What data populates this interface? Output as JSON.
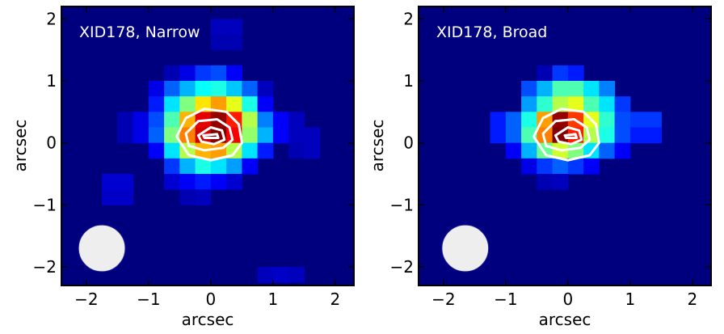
{
  "chart_data": [
    {
      "type": "heatmap",
      "title": "XID178, Narrow",
      "xlabel": "arcsec",
      "ylabel": "arcsec",
      "xlim": [
        -2.4,
        2.3
      ],
      "ylim": [
        -2.3,
        2.2
      ],
      "xticks": [
        -2,
        -1,
        0,
        1,
        2
      ],
      "yticks": [
        -2,
        -1,
        0,
        1,
        2
      ],
      "xtick_labels": [
        "−2",
        "−1",
        "0",
        "1",
        "2"
      ],
      "ytick_labels": [
        "−2",
        "−1",
        "0",
        "1",
        "2"
      ],
      "grid": false,
      "colormap": "jet",
      "background_color": "#00007f",
      "pixel_size": 0.25,
      "pixels": [
        {
          "x": 0.125,
          "y": 1.875,
          "v": 0.06
        },
        {
          "x": 0.375,
          "y": 1.875,
          "v": 0.06
        },
        {
          "x": 0.125,
          "y": 1.625,
          "v": 0.05
        },
        {
          "x": 0.375,
          "y": 1.625,
          "v": 0.05
        },
        {
          "x": -0.625,
          "y": 1.125,
          "v": 0.05
        },
        {
          "x": -0.375,
          "y": 1.125,
          "v": 0.1
        },
        {
          "x": -0.125,
          "y": 1.125,
          "v": 0.18
        },
        {
          "x": 0.125,
          "y": 1.125,
          "v": 0.2
        },
        {
          "x": 0.375,
          "y": 1.125,
          "v": 0.12
        },
        {
          "x": -0.875,
          "y": 0.875,
          "v": 0.1
        },
        {
          "x": -0.625,
          "y": 0.875,
          "v": 0.22
        },
        {
          "x": -0.375,
          "y": 0.875,
          "v": 0.3
        },
        {
          "x": -0.125,
          "y": 0.875,
          "v": 0.38
        },
        {
          "x": 0.125,
          "y": 0.875,
          "v": 0.4
        },
        {
          "x": 0.375,
          "y": 0.875,
          "v": 0.32
        },
        {
          "x": 0.625,
          "y": 0.875,
          "v": 0.22
        },
        {
          "x": 0.875,
          "y": 0.875,
          "v": 0.06
        },
        {
          "x": -0.875,
          "y": 0.625,
          "v": 0.15
        },
        {
          "x": -0.625,
          "y": 0.625,
          "v": 0.35
        },
        {
          "x": -0.375,
          "y": 0.625,
          "v": 0.5
        },
        {
          "x": -0.125,
          "y": 0.625,
          "v": 0.65
        },
        {
          "x": 0.125,
          "y": 0.625,
          "v": 0.72
        },
        {
          "x": 0.375,
          "y": 0.625,
          "v": 0.6
        },
        {
          "x": 0.625,
          "y": 0.625,
          "v": 0.4
        },
        {
          "x": 0.875,
          "y": 0.625,
          "v": 0.12
        },
        {
          "x": -1.375,
          "y": 0.375,
          "v": 0.05
        },
        {
          "x": -1.125,
          "y": 0.375,
          "v": 0.1
        },
        {
          "x": -0.875,
          "y": 0.375,
          "v": 0.2
        },
        {
          "x": -0.625,
          "y": 0.375,
          "v": 0.45
        },
        {
          "x": -0.375,
          "y": 0.375,
          "v": 0.7
        },
        {
          "x": -0.125,
          "y": 0.375,
          "v": 0.9
        },
        {
          "x": 0.125,
          "y": 0.375,
          "v": 0.98
        },
        {
          "x": 0.375,
          "y": 0.375,
          "v": 0.85
        },
        {
          "x": 0.625,
          "y": 0.375,
          "v": 0.55
        },
        {
          "x": 0.875,
          "y": 0.375,
          "v": 0.25
        },
        {
          "x": 1.125,
          "y": 0.375,
          "v": 0.12
        },
        {
          "x": 1.375,
          "y": 0.375,
          "v": 0.06
        },
        {
          "x": -1.375,
          "y": 0.125,
          "v": 0.05
        },
        {
          "x": -1.125,
          "y": 0.125,
          "v": 0.1
        },
        {
          "x": -0.875,
          "y": 0.125,
          "v": 0.22
        },
        {
          "x": -0.625,
          "y": 0.125,
          "v": 0.5
        },
        {
          "x": -0.375,
          "y": 0.125,
          "v": 0.75
        },
        {
          "x": -0.125,
          "y": 0.125,
          "v": 0.92
        },
        {
          "x": 0.125,
          "y": 0.125,
          "v": 1.0
        },
        {
          "x": 0.375,
          "y": 0.125,
          "v": 0.88
        },
        {
          "x": 0.625,
          "y": 0.125,
          "v": 0.52
        },
        {
          "x": 0.875,
          "y": 0.125,
          "v": 0.3
        },
        {
          "x": 1.125,
          "y": 0.125,
          "v": 0.12
        },
        {
          "x": 1.375,
          "y": 0.125,
          "v": 0.06
        },
        {
          "x": 1.625,
          "y": 0.125,
          "v": 0.06
        },
        {
          "x": -0.875,
          "y": -0.125,
          "v": 0.12
        },
        {
          "x": -0.625,
          "y": -0.125,
          "v": 0.35
        },
        {
          "x": -0.375,
          "y": -0.125,
          "v": 0.55
        },
        {
          "x": -0.125,
          "y": -0.125,
          "v": 0.7
        },
        {
          "x": 0.125,
          "y": -0.125,
          "v": 0.72
        },
        {
          "x": 0.375,
          "y": -0.125,
          "v": 0.55
        },
        {
          "x": 0.625,
          "y": -0.125,
          "v": 0.35
        },
        {
          "x": 0.875,
          "y": -0.125,
          "v": 0.15
        },
        {
          "x": 1.375,
          "y": -0.125,
          "v": 0.05
        },
        {
          "x": 1.625,
          "y": -0.125,
          "v": 0.06
        },
        {
          "x": -0.625,
          "y": -0.375,
          "v": 0.18
        },
        {
          "x": -0.375,
          "y": -0.375,
          "v": 0.3
        },
        {
          "x": -0.125,
          "y": -0.375,
          "v": 0.4
        },
        {
          "x": 0.125,
          "y": -0.375,
          "v": 0.35
        },
        {
          "x": 0.375,
          "y": -0.375,
          "v": 0.28
        },
        {
          "x": 0.625,
          "y": -0.375,
          "v": 0.12
        },
        {
          "x": -1.625,
          "y": -0.625,
          "v": 0.08
        },
        {
          "x": -1.375,
          "y": -0.625,
          "v": 0.08
        },
        {
          "x": -0.625,
          "y": -0.625,
          "v": 0.08
        },
        {
          "x": -0.375,
          "y": -0.625,
          "v": 0.12
        },
        {
          "x": -0.125,
          "y": -0.625,
          "v": 0.15
        },
        {
          "x": 0.125,
          "y": -0.625,
          "v": 0.12
        },
        {
          "x": 0.375,
          "y": -0.625,
          "v": 0.08
        },
        {
          "x": -1.625,
          "y": -0.875,
          "v": 0.07
        },
        {
          "x": -1.375,
          "y": -0.875,
          "v": 0.07
        },
        {
          "x": -0.375,
          "y": -0.875,
          "v": 0.05
        },
        {
          "x": -0.125,
          "y": -0.875,
          "v": 0.06
        },
        {
          "x": 0.875,
          "y": -2.125,
          "v": 0.06
        },
        {
          "x": 1.125,
          "y": -2.125,
          "v": 0.07
        },
        {
          "x": 1.375,
          "y": -2.125,
          "v": 0.06
        }
      ],
      "contours": [
        {
          "level": "outer",
          "points": [
            [
              -0.55,
              0.1
            ],
            [
              -0.4,
              0.4
            ],
            [
              -0.1,
              0.55
            ],
            [
              0.25,
              0.5
            ],
            [
              0.45,
              0.3
            ],
            [
              0.5,
              0.0
            ],
            [
              0.35,
              -0.2
            ],
            [
              0.0,
              -0.28
            ],
            [
              -0.35,
              -0.2
            ]
          ]
        },
        {
          "level": "middle",
          "points": [
            [
              -0.4,
              0.15
            ],
            [
              -0.2,
              0.35
            ],
            [
              0.1,
              0.38
            ],
            [
              0.3,
              0.25
            ],
            [
              0.35,
              0.05
            ],
            [
              0.2,
              -0.08
            ],
            [
              -0.1,
              -0.12
            ],
            [
              -0.35,
              -0.05
            ]
          ]
        },
        {
          "level": "inner",
          "points": [
            [
              -0.2,
              0.12
            ],
            [
              0.0,
              0.25
            ],
            [
              0.18,
              0.2
            ],
            [
              0.22,
              0.05
            ],
            [
              0.05,
              -0.02
            ],
            [
              -0.15,
              0.02
            ]
          ]
        },
        {
          "level": "core",
          "points": [
            [
              -0.12,
              0.12
            ],
            [
              0.1,
              0.14
            ],
            [
              0.12,
              0.08
            ],
            [
              -0.1,
              0.08
            ]
          ]
        }
      ],
      "beam": {
        "x": -1.75,
        "y": -1.7,
        "diameter_arcsec": 0.75,
        "color": "#eeeeee"
      }
    },
    {
      "type": "heatmap",
      "title": "XID178, Broad",
      "xlabel": "arcsec",
      "ylabel": "arcsec",
      "xlim": [
        -2.4,
        2.3
      ],
      "ylim": [
        -2.3,
        2.2
      ],
      "xticks": [
        -2,
        -1,
        0,
        1,
        2
      ],
      "yticks": [
        -2,
        -1,
        0,
        1,
        2
      ],
      "xtick_labels": [
        "−2",
        "−1",
        "0",
        "1",
        "2"
      ],
      "ytick_labels": [
        "−2",
        "−1",
        "0",
        "1",
        "2"
      ],
      "grid": false,
      "colormap": "jet",
      "background_color": "#00007f",
      "pixel_size": 0.25,
      "pixels": [
        {
          "x": -0.375,
          "y": 1.125,
          "v": 0.05
        },
        {
          "x": -0.125,
          "y": 1.125,
          "v": 0.18
        },
        {
          "x": 0.125,
          "y": 1.125,
          "v": 0.15
        },
        {
          "x": -0.625,
          "y": 0.875,
          "v": 0.2
        },
        {
          "x": -0.375,
          "y": 0.875,
          "v": 0.3
        },
        {
          "x": -0.125,
          "y": 0.875,
          "v": 0.45
        },
        {
          "x": 0.125,
          "y": 0.875,
          "v": 0.45
        },
        {
          "x": 0.375,
          "y": 0.875,
          "v": 0.35
        },
        {
          "x": 0.625,
          "y": 0.875,
          "v": 0.25
        },
        {
          "x": -0.625,
          "y": 0.625,
          "v": 0.28
        },
        {
          "x": -0.375,
          "y": 0.625,
          "v": 0.42
        },
        {
          "x": -0.125,
          "y": 0.625,
          "v": 0.55
        },
        {
          "x": 0.125,
          "y": 0.625,
          "v": 0.6
        },
        {
          "x": 0.375,
          "y": 0.625,
          "v": 0.45
        },
        {
          "x": 0.625,
          "y": 0.625,
          "v": 0.35
        },
        {
          "x": 0.875,
          "y": 0.625,
          "v": 0.18
        },
        {
          "x": -1.125,
          "y": 0.375,
          "v": 0.15
        },
        {
          "x": -0.875,
          "y": 0.375,
          "v": 0.22
        },
        {
          "x": -0.625,
          "y": 0.375,
          "v": 0.4
        },
        {
          "x": -0.375,
          "y": 0.375,
          "v": 0.72
        },
        {
          "x": -0.125,
          "y": 0.375,
          "v": 0.98
        },
        {
          "x": 0.125,
          "y": 0.375,
          "v": 0.82
        },
        {
          "x": 0.375,
          "y": 0.375,
          "v": 0.6
        },
        {
          "x": 0.625,
          "y": 0.375,
          "v": 0.42
        },
        {
          "x": 0.875,
          "y": 0.375,
          "v": 0.2
        },
        {
          "x": 1.125,
          "y": 0.375,
          "v": 0.18
        },
        {
          "x": 1.375,
          "y": 0.375,
          "v": 0.18
        },
        {
          "x": -1.125,
          "y": 0.125,
          "v": 0.15
        },
        {
          "x": -0.875,
          "y": 0.125,
          "v": 0.22
        },
        {
          "x": -0.625,
          "y": 0.125,
          "v": 0.45
        },
        {
          "x": -0.375,
          "y": 0.125,
          "v": 0.75
        },
        {
          "x": -0.125,
          "y": 0.125,
          "v": 1.0
        },
        {
          "x": 0.125,
          "y": 0.125,
          "v": 0.85
        },
        {
          "x": 0.375,
          "y": 0.125,
          "v": 0.55
        },
        {
          "x": 0.625,
          "y": 0.125,
          "v": 0.4
        },
        {
          "x": 0.875,
          "y": 0.125,
          "v": 0.2
        },
        {
          "x": 1.125,
          "y": 0.125,
          "v": 0.15
        },
        {
          "x": 1.375,
          "y": 0.125,
          "v": 0.15
        },
        {
          "x": -0.875,
          "y": -0.125,
          "v": 0.12
        },
        {
          "x": -0.625,
          "y": -0.125,
          "v": 0.3
        },
        {
          "x": -0.375,
          "y": -0.125,
          "v": 0.48
        },
        {
          "x": -0.125,
          "y": -0.125,
          "v": 0.58
        },
        {
          "x": 0.125,
          "y": -0.125,
          "v": 0.5
        },
        {
          "x": 0.375,
          "y": -0.125,
          "v": 0.35
        },
        {
          "x": 0.625,
          "y": -0.125,
          "v": 0.22
        },
        {
          "x": 0.875,
          "y": -0.125,
          "v": 0.12
        },
        {
          "x": -0.625,
          "y": -0.375,
          "v": 0.1
        },
        {
          "x": -0.375,
          "y": -0.375,
          "v": 0.18
        },
        {
          "x": -0.125,
          "y": -0.375,
          "v": 0.22
        },
        {
          "x": 0.125,
          "y": -0.375,
          "v": 0.18
        },
        {
          "x": 0.375,
          "y": -0.375,
          "v": 0.12
        },
        {
          "x": -0.375,
          "y": -0.625,
          "v": 0.05
        },
        {
          "x": -0.125,
          "y": -0.625,
          "v": 0.06
        }
      ],
      "contours": [
        {
          "level": "outer",
          "points": [
            [
              -0.55,
              0.1
            ],
            [
              -0.4,
              0.4
            ],
            [
              -0.1,
              0.55
            ],
            [
              0.25,
              0.5
            ],
            [
              0.45,
              0.3
            ],
            [
              0.5,
              0.0
            ],
            [
              0.35,
              -0.2
            ],
            [
              0.0,
              -0.28
            ],
            [
              -0.35,
              -0.2
            ]
          ]
        },
        {
          "level": "middle",
          "points": [
            [
              -0.4,
              0.15
            ],
            [
              -0.2,
              0.35
            ],
            [
              0.1,
              0.38
            ],
            [
              0.3,
              0.25
            ],
            [
              0.35,
              0.05
            ],
            [
              0.2,
              -0.08
            ],
            [
              -0.1,
              -0.12
            ],
            [
              -0.35,
              -0.05
            ]
          ]
        },
        {
          "level": "inner",
          "points": [
            [
              -0.2,
              0.12
            ],
            [
              0.0,
              0.25
            ],
            [
              0.18,
              0.2
            ],
            [
              0.22,
              0.05
            ],
            [
              0.05,
              -0.02
            ],
            [
              -0.15,
              0.02
            ]
          ]
        },
        {
          "level": "core",
          "points": [
            [
              -0.05,
              0.12
            ],
            [
              0.12,
              0.14
            ],
            [
              0.14,
              0.08
            ],
            [
              -0.03,
              0.08
            ]
          ]
        }
      ],
      "beam": {
        "x": -1.65,
        "y": -1.7,
        "diameter_arcsec": 0.75,
        "color": "#eeeeee"
      }
    }
  ]
}
